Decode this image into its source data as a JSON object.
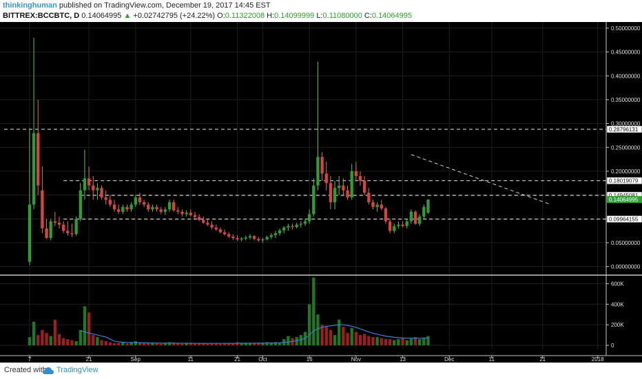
{
  "header": {
    "author": "thinkinghuman",
    "published_text": "published on TradingView.com, December 19, 2017 14:45 EST",
    "symbol": "BITTREX:BCCBTC, D",
    "last": "0.14064995",
    "arrow": "▲",
    "change": "+0.02742795 (+24.22%)",
    "o_label": "O:",
    "o_value": "0.11322008",
    "h_label": "H:",
    "h_value": "0.14099999",
    "l_label": "L:",
    "l_value": "0.11080000",
    "c_label": "C:",
    "c_value": "0.14064995"
  },
  "footer": {
    "created_with": "Created with",
    "brand": "TradingView"
  },
  "colors": {
    "background": "#000000",
    "up": "#2e9f2e",
    "down": "#d8453d",
    "volume_up": "#1e7a1e",
    "volume_down": "#9b1f1f",
    "ma_line": "#3a80d8",
    "grid": "#1e1e1e",
    "dash": "#d0d0d0",
    "last_label": "#2fa02f"
  },
  "chart_data": {
    "type": "candlestick",
    "price_axis": {
      "ticks": [
        0.0,
        0.05,
        0.1,
        0.15,
        0.2,
        0.25,
        0.3,
        0.35,
        0.4,
        0.45,
        0.5
      ],
      "tick_labels": [
        "0.00000000",
        "0.05000000",
        "0.10000000",
        "0.15000000",
        "0.20000000",
        "0.25000000",
        "0.30000000",
        "0.35000000",
        "0.40000000",
        "0.45000000",
        "0.50000000"
      ],
      "range": [
        -0.015,
        0.51
      ]
    },
    "volume_axis": {
      "ticks": [
        0,
        200000,
        400000,
        600000
      ],
      "tick_labels": [
        "0",
        "200K",
        "400K",
        "600K"
      ],
      "range": [
        -40000,
        670000
      ]
    },
    "x_axis": {
      "range_index": [
        -6,
        136
      ],
      "tick_index": [
        0,
        14,
        25,
        38,
        49,
        55,
        66,
        77,
        88,
        99,
        109,
        121,
        134
      ],
      "tick_labels": [
        "7",
        "21",
        "Sep",
        "11",
        "21",
        "Oct",
        "16",
        "Nov",
        "13",
        "Dec",
        "11",
        "21",
        "2018"
      ]
    },
    "horizontal_levels": [
      {
        "value": 0.28796131,
        "label": "0.28796131",
        "from_index": -6
      },
      {
        "value": 0.18019079,
        "label": "0.18019079",
        "from_index": 8
      },
      {
        "value": 0.14945081,
        "label": "0.14945081",
        "from_index": 12
      },
      {
        "value": 0.09964155,
        "label": "0.09964155",
        "from_index": 8
      }
    ],
    "last_price": {
      "value": 0.14064995,
      "label": "0.14064995"
    },
    "trendline": {
      "from": [
        90,
        0.235
      ],
      "to": [
        123,
        0.13
      ]
    },
    "candles": [
      {
        "o": 0.01,
        "h": 0.29,
        "l": 0.003,
        "c": 0.13
      },
      {
        "o": 0.13,
        "h": 0.48,
        "l": 0.12,
        "c": 0.28
      },
      {
        "o": 0.28,
        "h": 0.35,
        "l": 0.15,
        "c": 0.17
      },
      {
        "o": 0.16,
        "h": 0.21,
        "l": 0.07,
        "c": 0.08
      },
      {
        "o": 0.08,
        "h": 0.1,
        "l": 0.058,
        "c": 0.06
      },
      {
        "o": 0.06,
        "h": 0.1,
        "l": 0.055,
        "c": 0.095
      },
      {
        "o": 0.095,
        "h": 0.115,
        "l": 0.085,
        "c": 0.092
      },
      {
        "o": 0.092,
        "h": 0.105,
        "l": 0.08,
        "c": 0.088
      },
      {
        "o": 0.088,
        "h": 0.095,
        "l": 0.07,
        "c": 0.075
      },
      {
        "o": 0.075,
        "h": 0.095,
        "l": 0.065,
        "c": 0.07
      },
      {
        "o": 0.07,
        "h": 0.09,
        "l": 0.062,
        "c": 0.068
      },
      {
        "o": 0.068,
        "h": 0.105,
        "l": 0.065,
        "c": 0.1
      },
      {
        "o": 0.1,
        "h": 0.175,
        "l": 0.095,
        "c": 0.16
      },
      {
        "o": 0.16,
        "h": 0.245,
        "l": 0.14,
        "c": 0.185
      },
      {
        "o": 0.185,
        "h": 0.21,
        "l": 0.16,
        "c": 0.17
      },
      {
        "o": 0.17,
        "h": 0.19,
        "l": 0.14,
        "c": 0.16
      },
      {
        "o": 0.16,
        "h": 0.175,
        "l": 0.14,
        "c": 0.165
      },
      {
        "o": 0.165,
        "h": 0.17,
        "l": 0.14,
        "c": 0.145
      },
      {
        "o": 0.145,
        "h": 0.16,
        "l": 0.13,
        "c": 0.14
      },
      {
        "o": 0.14,
        "h": 0.15,
        "l": 0.125,
        "c": 0.13
      },
      {
        "o": 0.13,
        "h": 0.14,
        "l": 0.115,
        "c": 0.12
      },
      {
        "o": 0.12,
        "h": 0.13,
        "l": 0.11,
        "c": 0.115
      },
      {
        "o": 0.115,
        "h": 0.13,
        "l": 0.11,
        "c": 0.125
      },
      {
        "o": 0.125,
        "h": 0.13,
        "l": 0.115,
        "c": 0.12
      },
      {
        "o": 0.12,
        "h": 0.135,
        "l": 0.115,
        "c": 0.13
      },
      {
        "o": 0.13,
        "h": 0.15,
        "l": 0.125,
        "c": 0.145
      },
      {
        "o": 0.145,
        "h": 0.155,
        "l": 0.13,
        "c": 0.135
      },
      {
        "o": 0.135,
        "h": 0.14,
        "l": 0.125,
        "c": 0.13
      },
      {
        "o": 0.13,
        "h": 0.135,
        "l": 0.115,
        "c": 0.12
      },
      {
        "o": 0.12,
        "h": 0.13,
        "l": 0.115,
        "c": 0.125
      },
      {
        "o": 0.125,
        "h": 0.13,
        "l": 0.115,
        "c": 0.12
      },
      {
        "o": 0.12,
        "h": 0.125,
        "l": 0.11,
        "c": 0.115
      },
      {
        "o": 0.115,
        "h": 0.125,
        "l": 0.108,
        "c": 0.12
      },
      {
        "o": 0.12,
        "h": 0.14,
        "l": 0.115,
        "c": 0.135
      },
      {
        "o": 0.135,
        "h": 0.14,
        "l": 0.115,
        "c": 0.118
      },
      {
        "o": 0.118,
        "h": 0.125,
        "l": 0.11,
        "c": 0.115
      },
      {
        "o": 0.115,
        "h": 0.12,
        "l": 0.105,
        "c": 0.11
      },
      {
        "o": 0.11,
        "h": 0.118,
        "l": 0.105,
        "c": 0.113
      },
      {
        "o": 0.113,
        "h": 0.12,
        "l": 0.105,
        "c": 0.108
      },
      {
        "o": 0.108,
        "h": 0.115,
        "l": 0.1,
        "c": 0.104
      },
      {
        "o": 0.104,
        "h": 0.11,
        "l": 0.095,
        "c": 0.098
      },
      {
        "o": 0.098,
        "h": 0.105,
        "l": 0.09,
        "c": 0.092
      },
      {
        "o": 0.092,
        "h": 0.098,
        "l": 0.085,
        "c": 0.088
      },
      {
        "o": 0.088,
        "h": 0.095,
        "l": 0.078,
        "c": 0.082
      },
      {
        "o": 0.082,
        "h": 0.088,
        "l": 0.075,
        "c": 0.078
      },
      {
        "o": 0.078,
        "h": 0.082,
        "l": 0.07,
        "c": 0.072
      },
      {
        "o": 0.072,
        "h": 0.078,
        "l": 0.065,
        "c": 0.068
      },
      {
        "o": 0.068,
        "h": 0.072,
        "l": 0.06,
        "c": 0.063
      },
      {
        "o": 0.063,
        "h": 0.068,
        "l": 0.056,
        "c": 0.06
      },
      {
        "o": 0.06,
        "h": 0.066,
        "l": 0.054,
        "c": 0.057
      },
      {
        "o": 0.057,
        "h": 0.062,
        "l": 0.053,
        "c": 0.059
      },
      {
        "o": 0.059,
        "h": 0.065,
        "l": 0.055,
        "c": 0.061
      },
      {
        "o": 0.061,
        "h": 0.068,
        "l": 0.057,
        "c": 0.064
      },
      {
        "o": 0.064,
        "h": 0.066,
        "l": 0.055,
        "c": 0.058
      },
      {
        "o": 0.058,
        "h": 0.062,
        "l": 0.052,
        "c": 0.055
      },
      {
        "o": 0.055,
        "h": 0.06,
        "l": 0.05,
        "c": 0.057
      },
      {
        "o": 0.057,
        "h": 0.065,
        "l": 0.055,
        "c": 0.062
      },
      {
        "o": 0.062,
        "h": 0.07,
        "l": 0.058,
        "c": 0.066
      },
      {
        "o": 0.066,
        "h": 0.075,
        "l": 0.06,
        "c": 0.07
      },
      {
        "o": 0.07,
        "h": 0.08,
        "l": 0.065,
        "c": 0.076
      },
      {
        "o": 0.076,
        "h": 0.085,
        "l": 0.07,
        "c": 0.082
      },
      {
        "o": 0.082,
        "h": 0.09,
        "l": 0.075,
        "c": 0.085
      },
      {
        "o": 0.085,
        "h": 0.09,
        "l": 0.078,
        "c": 0.083
      },
      {
        "o": 0.083,
        "h": 0.092,
        "l": 0.08,
        "c": 0.088
      },
      {
        "o": 0.088,
        "h": 0.095,
        "l": 0.082,
        "c": 0.09
      },
      {
        "o": 0.09,
        "h": 0.1,
        "l": 0.085,
        "c": 0.095
      },
      {
        "o": 0.095,
        "h": 0.12,
        "l": 0.09,
        "c": 0.11
      },
      {
        "o": 0.11,
        "h": 0.185,
        "l": 0.105,
        "c": 0.17
      },
      {
        "o": 0.17,
        "h": 0.43,
        "l": 0.16,
        "c": 0.23
      },
      {
        "o": 0.23,
        "h": 0.24,
        "l": 0.18,
        "c": 0.195
      },
      {
        "o": 0.195,
        "h": 0.22,
        "l": 0.16,
        "c": 0.175
      },
      {
        "o": 0.175,
        "h": 0.19,
        "l": 0.12,
        "c": 0.135
      },
      {
        "o": 0.135,
        "h": 0.18,
        "l": 0.12,
        "c": 0.165
      },
      {
        "o": 0.165,
        "h": 0.19,
        "l": 0.15,
        "c": 0.17
      },
      {
        "o": 0.17,
        "h": 0.185,
        "l": 0.15,
        "c": 0.16
      },
      {
        "o": 0.16,
        "h": 0.17,
        "l": 0.14,
        "c": 0.145
      },
      {
        "o": 0.145,
        "h": 0.215,
        "l": 0.14,
        "c": 0.2
      },
      {
        "o": 0.2,
        "h": 0.22,
        "l": 0.18,
        "c": 0.19
      },
      {
        "o": 0.19,
        "h": 0.2,
        "l": 0.17,
        "c": 0.18
      },
      {
        "o": 0.18,
        "h": 0.19,
        "l": 0.15,
        "c": 0.155
      },
      {
        "o": 0.155,
        "h": 0.165,
        "l": 0.13,
        "c": 0.135
      },
      {
        "o": 0.135,
        "h": 0.14,
        "l": 0.12,
        "c": 0.125
      },
      {
        "o": 0.125,
        "h": 0.135,
        "l": 0.115,
        "c": 0.13
      },
      {
        "o": 0.13,
        "h": 0.14,
        "l": 0.118,
        "c": 0.122
      },
      {
        "o": 0.122,
        "h": 0.125,
        "l": 0.09,
        "c": 0.095
      },
      {
        "o": 0.095,
        "h": 0.1,
        "l": 0.07,
        "c": 0.075
      },
      {
        "o": 0.075,
        "h": 0.09,
        "l": 0.07,
        "c": 0.085
      },
      {
        "o": 0.085,
        "h": 0.095,
        "l": 0.08,
        "c": 0.088
      },
      {
        "o": 0.088,
        "h": 0.095,
        "l": 0.082,
        "c": 0.085
      },
      {
        "o": 0.085,
        "h": 0.1,
        "l": 0.08,
        "c": 0.095
      },
      {
        "o": 0.095,
        "h": 0.12,
        "l": 0.09,
        "c": 0.115
      },
      {
        "o": 0.115,
        "h": 0.118,
        "l": 0.088,
        "c": 0.09
      },
      {
        "o": 0.09,
        "h": 0.11,
        "l": 0.085,
        "c": 0.105
      },
      {
        "o": 0.105,
        "h": 0.13,
        "l": 0.1,
        "c": 0.125
      },
      {
        "o": 0.113,
        "h": 0.141,
        "l": 0.1108,
        "c": 0.14065
      }
    ],
    "volume": {
      "values": [
        80000,
        230000,
        100000,
        150000,
        120000,
        90000,
        250000,
        110000,
        70000,
        60000,
        50000,
        40000,
        150000,
        380000,
        320000,
        100000,
        80000,
        50000,
        40000,
        30000,
        20000,
        25000,
        30000,
        20000,
        30000,
        40000,
        30000,
        25000,
        20000,
        25000,
        20000,
        15000,
        20000,
        30000,
        25000,
        20000,
        15000,
        18000,
        20000,
        15000,
        20000,
        18000,
        15000,
        18000,
        20000,
        15000,
        20000,
        18000,
        20000,
        30000,
        22000,
        20000,
        18000,
        22000,
        25000,
        20000,
        30000,
        25000,
        30000,
        25000,
        60000,
        90000,
        70000,
        80000,
        100000,
        130000,
        400000,
        660000,
        300000,
        200000,
        180000,
        150000,
        100000,
        250000,
        180000,
        120000,
        170000,
        130000,
        100000,
        110000,
        90000,
        80000,
        80000,
        70000,
        60000,
        60000,
        50000,
        60000,
        70000,
        50000,
        65000,
        80000,
        60000,
        70000,
        90000
      ],
      "ma": [
        null,
        null,
        null,
        null,
        null,
        null,
        null,
        null,
        null,
        null,
        null,
        null,
        140000,
        130000,
        120000,
        110000,
        100000,
        90000,
        80000,
        60000,
        40000,
        35000,
        30000,
        28000,
        27000,
        26000,
        25000,
        24000,
        23000,
        22000,
        22000,
        21000,
        21000,
        21000,
        21000,
        20000,
        20000,
        20000,
        20000,
        19000,
        19000,
        19000,
        19000,
        19000,
        19000,
        19000,
        19000,
        19000,
        19000,
        20000,
        20000,
        20000,
        20000,
        21000,
        21000,
        21000,
        22000,
        22000,
        23000,
        24000,
        27000,
        32000,
        38000,
        45000,
        55000,
        70000,
        100000,
        140000,
        160000,
        175000,
        185000,
        190000,
        195000,
        200000,
        200000,
        195000,
        185000,
        175000,
        160000,
        145000,
        130000,
        118000,
        108000,
        98000,
        90000,
        84000,
        78000,
        74000,
        72000,
        70000,
        69000,
        69000,
        69000,
        70000,
        72000
      ]
    }
  }
}
